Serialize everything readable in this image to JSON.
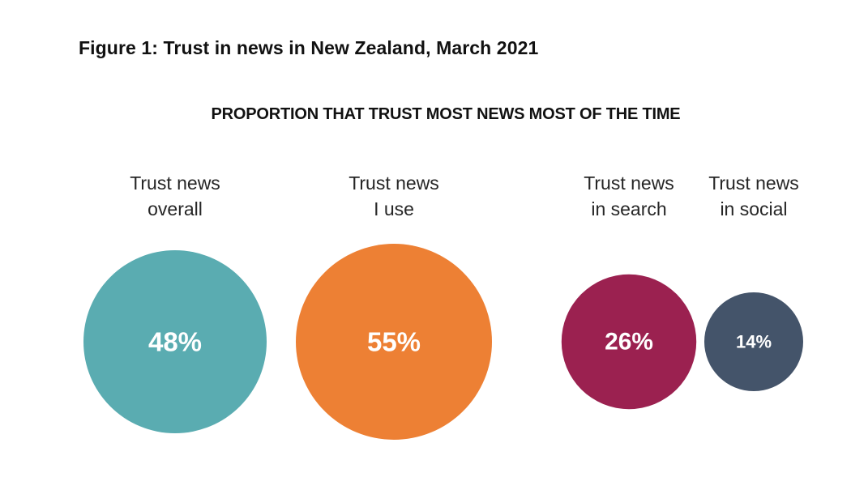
{
  "figure": {
    "title": "Figure 1: Trust in news in New Zealand, March 2021"
  },
  "chart_data": {
    "type": "bubble",
    "title": "PROPORTION THAT TRUST MOST NEWS MOST OF THE TIME",
    "unit": "%",
    "categories": [
      [
        "Trust news",
        "overall"
      ],
      [
        "Trust news",
        "I use"
      ],
      [
        "Trust news",
        "in search"
      ],
      [
        "Trust news",
        "in social"
      ]
    ],
    "values": [
      48,
      55,
      26,
      14
    ],
    "value_labels": [
      "48%",
      "55%",
      "26%",
      "14%"
    ],
    "colors": [
      "#5aacb1",
      "#ed8034",
      "#9b2150",
      "#44546a"
    ]
  }
}
